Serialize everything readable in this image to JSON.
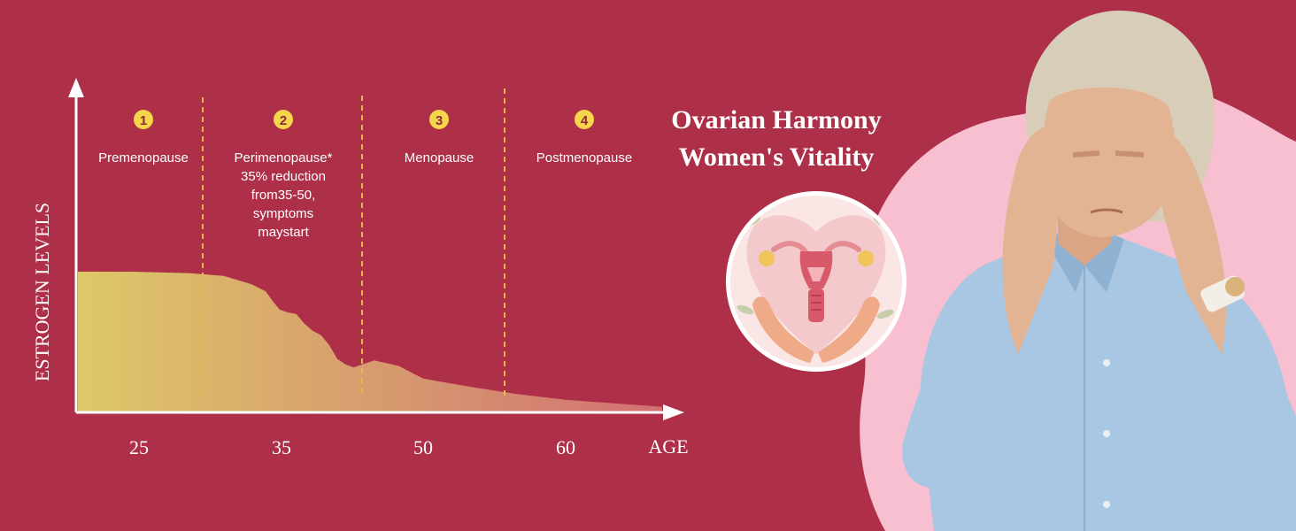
{
  "chart_data": {
    "type": "area",
    "title": "",
    "xlabel": "AGE",
    "ylabel": "ESTROGEN LEVELS",
    "x_ticks": [
      "25",
      "35",
      "50",
      "60"
    ],
    "y_ticks": [],
    "curve": {
      "x": [
        25,
        27,
        29,
        31,
        32,
        33,
        34,
        34.5,
        35,
        36,
        37,
        38,
        39,
        40,
        41,
        42,
        43,
        44,
        45,
        46,
        48,
        50,
        53,
        56,
        60,
        63,
        65
      ],
      "y": [
        100,
        100,
        99,
        97,
        94,
        91,
        86,
        79,
        73,
        71,
        70,
        63,
        58,
        55,
        48,
        38,
        34,
        32,
        34,
        37,
        33,
        24,
        18,
        13,
        9,
        6,
        4
      ]
    },
    "stages": [
      {
        "number": "1",
        "label": "Premenopause",
        "start_age": 25,
        "end_age": 29.5
      },
      {
        "number": "2",
        "label": "Perimenopause*\n35% reduction\nfrom35-50,\nsymptoms\nmaystart",
        "start_age": 29.5,
        "end_age": 45
      },
      {
        "number": "3",
        "label": "Menopause",
        "start_age": 45,
        "end_age": 55
      },
      {
        "number": "4",
        "label": "Postmenopause",
        "start_age": 55,
        "end_age": 65
      }
    ],
    "colors": {
      "area_left": "#ddc868",
      "area_right": "#d27074",
      "divider": "#e8b94a",
      "badge": "#f5d54a",
      "axis": "#ffffff"
    }
  },
  "brand": {
    "line1": "Ovarian Harmony",
    "line2": "Women's Vitality"
  },
  "colors": {
    "background": "#ad2f48",
    "blob": "#f7bfd0",
    "shirt": "#a9c6e2",
    "skin": "#e3b494",
    "hair": "#d7cdb8"
  }
}
